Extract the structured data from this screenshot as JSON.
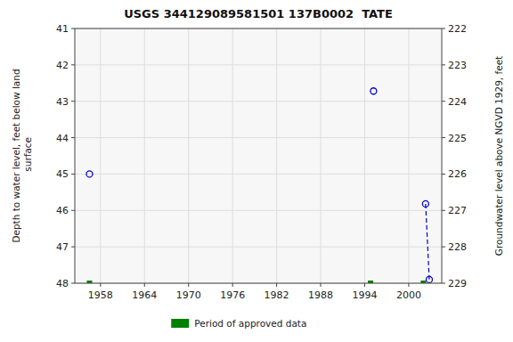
{
  "chart_data": {
    "type": "scatter",
    "title": "USGS 344129089581501 137B0002  TATE",
    "y_label": "Depth to water level, feet below land\n surface",
    "y2_label": "Groundwater level above NGVD 1929, feet",
    "xlim": [
      1954.5,
      2004.5
    ],
    "ylim": [
      48.0,
      41.0
    ],
    "y2lim": [
      229.0,
      222.0
    ],
    "xticks": [
      1958,
      1964,
      1970,
      1976,
      1982,
      1988,
      1994,
      2000
    ],
    "yticks": [
      41.0,
      42.0,
      43.0,
      44.0,
      45.0,
      46.0,
      47.0,
      48.0
    ],
    "y2ticks": [
      222.0,
      223.0,
      224.0,
      225.0,
      226.0,
      227.0,
      228.0,
      229.0
    ],
    "grid": true,
    "legend": "bottom",
    "series": [
      {
        "type": "scatter",
        "marker": "circle",
        "color": "#0000cc",
        "x": [
          1956.5,
          1995.2,
          2002.3,
          2002.8
        ],
        "values": [
          45.0,
          42.72,
          45.82,
          47.9
        ]
      },
      {
        "type": "line",
        "line_style": "dashed",
        "color": "#0000cc",
        "x": [
          2002.3,
          2002.8
        ],
        "values": [
          45.82,
          47.9
        ]
      },
      {
        "name": "Period of approved data",
        "type": "scatter",
        "marker": "square",
        "color": "#008000",
        "x": [
          1956.5,
          1994.8,
          2002.0
        ],
        "values": [
          48.0,
          48.0,
          48.0
        ]
      }
    ]
  }
}
